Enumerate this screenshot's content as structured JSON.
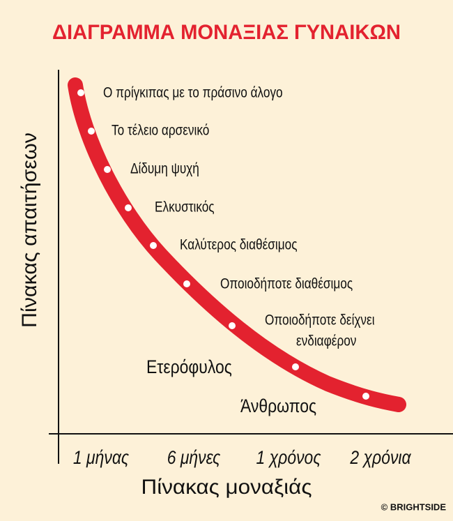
{
  "title": "ΔΙΑΓΡΑΜΜΑ ΜΟΝΑΞΙΑΣ ΓΥΝΑΙΚΩΝ",
  "y_axis_label": "Πίνακας απαιτήσεων",
  "x_axis_label": "Πίνακας μοναξιάς",
  "x_labels": [
    "1 μήνας",
    "6 μήνες",
    "1 χρόνος",
    "2 χρόνια"
  ],
  "points": [
    [
      "Ο πρίγκιπας με το πράσινο άλογο"
    ],
    [
      "Το τέλειο αρσενικό"
    ],
    [
      "Δίδυμη ψυχή"
    ],
    [
      "Ελκυστικός"
    ],
    [
      "Καλύτερος διαθέσιμος"
    ],
    [
      "Οποιοδήποτε διαθέσιμος"
    ],
    [
      "Οποιοδήποτε δείχνει",
      "ενδιαφέρον"
    ],
    [
      "Ετερόφυλος"
    ],
    [
      "Άνθρωπος"
    ]
  ],
  "credit": "© BRIGHTSIDE"
}
